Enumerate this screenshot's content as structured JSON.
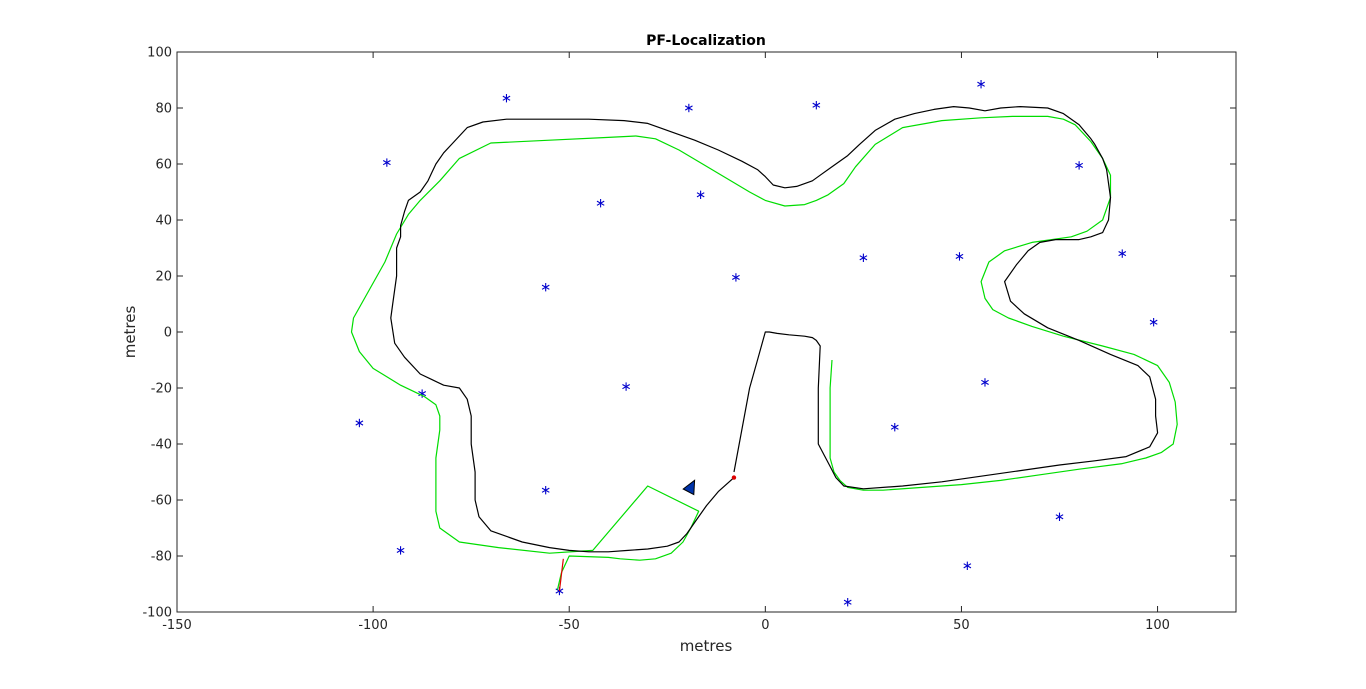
{
  "chart_data": {
    "type": "line",
    "title": "PF-Localization",
    "xlabel": "metres",
    "ylabel": "metres",
    "xlim": [
      -150,
      120
    ],
    "ylim": [
      -100,
      100
    ],
    "grid": false,
    "x_ticks": [
      -150,
      -100,
      -50,
      0,
      50,
      100
    ],
    "y_ticks": [
      -100,
      -80,
      -60,
      -40,
      -20,
      0,
      20,
      40,
      60,
      80,
      100
    ],
    "x_tick_labels": [
      "-150",
      "-100",
      "-50",
      "0",
      "50",
      "100"
    ],
    "y_tick_labels": [
      "-100",
      "-80",
      "-60",
      "-40",
      "-20",
      "0",
      "20",
      "40",
      "60",
      "80",
      "100"
    ],
    "colors": {
      "landmarks": "#0000cc",
      "true_path": "#00dd00",
      "estimated_path": "#000000",
      "observation": "#dd0000",
      "vehicle": "#0033aa"
    },
    "series": [
      {
        "kind": "landmarks",
        "x": [
          -66,
          -19.5,
          13,
          55,
          -96.5,
          80,
          -42,
          -16.5,
          -56,
          -7.5,
          25,
          49.5,
          91,
          99,
          -35.5,
          56,
          -87.5,
          -103.5,
          33,
          -56,
          75,
          -93,
          51.5,
          -52.5,
          21
        ],
        "y": [
          83.5,
          80,
          81,
          88.5,
          60.5,
          59.5,
          46,
          49,
          16,
          19.5,
          26.5,
          27,
          28,
          3.5,
          -19.5,
          -18,
          -22,
          -32.5,
          -34,
          -56.5,
          -66,
          -78,
          -83.5,
          -92.5,
          -96.5
        ]
      },
      {
        "kind": "true_path",
        "x": [
          -53,
          -52,
          -50,
          -40,
          -37,
          -32,
          -28,
          -24,
          -21,
          -19,
          -17,
          -30,
          -44,
          -55,
          -68,
          -78,
          -83,
          -84,
          -84,
          -83,
          -83,
          -84,
          -87,
          -93,
          -100,
          -103.5,
          -105.5,
          -105,
          -101,
          -97,
          -94,
          -91,
          -88,
          -83,
          -78,
          -70,
          -55,
          -40,
          -33,
          -28,
          -22,
          -16,
          -10,
          -4,
          0,
          5,
          10,
          13,
          16,
          20,
          23,
          28,
          35,
          45,
          55,
          63,
          68,
          72,
          76,
          79,
          83,
          86,
          88,
          88,
          86,
          82,
          78,
          73,
          68,
          61,
          57,
          55,
          56,
          58,
          62,
          68,
          76,
          86,
          94,
          100,
          103,
          104.5,
          105,
          104,
          101,
          97,
          91,
          80,
          70,
          60,
          50,
          40,
          30,
          25,
          21,
          19,
          17.5,
          16.5,
          16.5,
          16.5,
          17
        ],
        "y": [
          -92,
          -86,
          -80,
          -80.5,
          -81,
          -81.5,
          -81,
          -79,
          -75,
          -70,
          -64,
          -55,
          -78,
          -79,
          -77,
          -75,
          -70,
          -64,
          -45,
          -35,
          -30,
          -26,
          -23,
          -19,
          -13,
          -7,
          0,
          5,
          15,
          25,
          35,
          42,
          47,
          54,
          62,
          67.5,
          68.5,
          69.5,
          70,
          69,
          65,
          60,
          55,
          50,
          47,
          45,
          45.5,
          47,
          49,
          53,
          59,
          67,
          73,
          75.5,
          76.5,
          77,
          77,
          77,
          76,
          74,
          68,
          62,
          56,
          48,
          40,
          36,
          34,
          33,
          32,
          29,
          25,
          18,
          12,
          8,
          5,
          2,
          -1.5,
          -5,
          -8,
          -12,
          -18,
          -25,
          -33,
          -40,
          -43,
          -45,
          -47,
          -49,
          -51,
          -53,
          -54.5,
          -55.5,
          -56.5,
          -56.5,
          -55.5,
          -53,
          -50,
          -45,
          -35,
          -20,
          -10
        ]
      },
      {
        "kind": "estimated_path",
        "x": [
          -8,
          -12,
          -15,
          -18,
          -20,
          -22,
          -25,
          -30,
          -35,
          -40,
          -45,
          -50,
          -55,
          -62,
          -70,
          -73,
          -74,
          -74,
          -75,
          -75,
          -76,
          -78,
          -82,
          -85,
          -88,
          -92,
          -94.5,
          -95.5,
          -95,
          -94,
          -94,
          -94,
          -93,
          -93,
          -92,
          -91,
          -88,
          -86,
          -85,
          -84,
          -82,
          -80,
          -78,
          -76,
          -72,
          -66,
          -55,
          -45,
          -36,
          -30,
          -24,
          -18,
          -12,
          -6,
          -2,
          0,
          2,
          5,
          8,
          12,
          14,
          17,
          21,
          24,
          28,
          33,
          38,
          43,
          48,
          52,
          56,
          60,
          65,
          72,
          76,
          80,
          83,
          84,
          86,
          87,
          88,
          87.5,
          86,
          83,
          80,
          77,
          74,
          70,
          67,
          64,
          61,
          62.5,
          66,
          72,
          80,
          88,
          95,
          98,
          99.5,
          99.5,
          100,
          98,
          92,
          84,
          75,
          65,
          55,
          45,
          35,
          25,
          20,
          18,
          16.5,
          13.5,
          13.5,
          14,
          13,
          12,
          10,
          6,
          3,
          1,
          0,
          -2,
          -4,
          -6,
          -8
        ],
        "y": [
          -52,
          -57,
          -62,
          -68,
          -72,
          -75,
          -76.5,
          -77.5,
          -78,
          -78.5,
          -78.5,
          -78,
          -77,
          -75,
          -71,
          -66,
          -60,
          -50,
          -40,
          -30,
          -24,
          -20,
          -19,
          -17,
          -15,
          -9,
          -4,
          5,
          10,
          20,
          26,
          30,
          34,
          38,
          43,
          47,
          50,
          54,
          57,
          60,
          64,
          67,
          70,
          73,
          75,
          76,
          76,
          76,
          75.5,
          74.5,
          71.5,
          68.5,
          65,
          61,
          58,
          55.5,
          52.5,
          51.5,
          52,
          54,
          56,
          59,
          63,
          67,
          72,
          76,
          78,
          79.5,
          80.5,
          80,
          79,
          80,
          80.5,
          80,
          78,
          74,
          69,
          67,
          62,
          58,
          48,
          40,
          35.5,
          34,
          33,
          33,
          33,
          32,
          29,
          24,
          18,
          11,
          6.5,
          1.5,
          -3,
          -8,
          -12,
          -16,
          -24,
          -30,
          -36,
          -41,
          -44.5,
          -46,
          -47.5,
          -49.5,
          -51.5,
          -53.5,
          -55,
          -56,
          -55,
          -52,
          -48,
          -40,
          -20,
          -5,
          -3,
          -2,
          -1.5,
          -1,
          -0.5,
          0,
          0,
          -10,
          -20,
          -35,
          -50
        ]
      },
      {
        "kind": "observation",
        "x": [
          -52.5,
          -51.5
        ],
        "y": [
          -92.5,
          -81
        ]
      }
    ],
    "vehicle": {
      "x": -19,
      "y": -55.5,
      "heading_deg": 62
    },
    "estimate_marker": {
      "x": -8,
      "y": -52
    }
  }
}
